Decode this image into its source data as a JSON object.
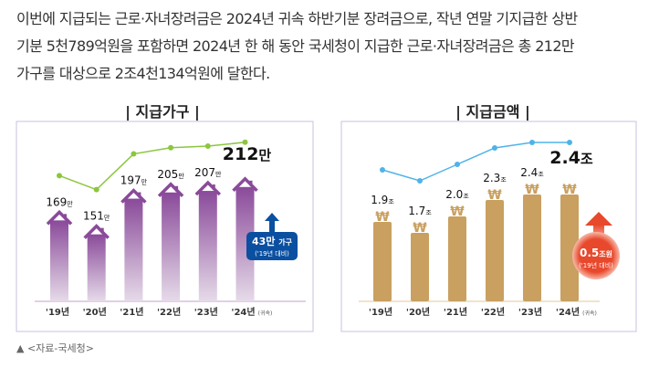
{
  "paragraph": [
    "이번에 지급되는 근로·자녀장려금은 2024년 귀속 하반기분 장려금으로, 작년 연말 기지급한 상반",
    "기분 5천789억원을 포함하면 2024년 한 해 동안 국세청이 지급한 근로·자녀장려금은 총 212만",
    "가구를 대상으로 2조4천134억원에 달한다."
  ],
  "source": "▲ <자료-국세청>",
  "chart_data": [
    {
      "type": "bar",
      "title": "| 지급가구 |",
      "categories": [
        "'19년",
        "'20년",
        "'21년",
        "'22년",
        "'23년",
        "'24년"
      ],
      "category_note": "(귀속)",
      "values": [
        169,
        151,
        197,
        205,
        207,
        212
      ],
      "value_labels": [
        "169",
        "151",
        "197",
        "205",
        "207",
        "212"
      ],
      "unit": "만",
      "bar_color": "#8a4a9a",
      "line_color": "#8cc63f",
      "callout": {
        "value": "43만",
        "unit": "가구",
        "note": "('19년 대비)",
        "color": "#0b4fa0"
      }
    },
    {
      "type": "bar",
      "title": "| 지급금액 |",
      "categories": [
        "'19년",
        "'20년",
        "'21년",
        "'22년",
        "'23년",
        "'24년"
      ],
      "category_note": "(귀속)",
      "values": [
        1.9,
        1.7,
        2.0,
        2.3,
        2.4,
        2.4
      ],
      "value_labels": [
        "1.9",
        "1.7",
        "2.0",
        "2.3",
        "2.4",
        "2.4"
      ],
      "unit": "조",
      "bar_color": "#c9a060",
      "line_color": "#4fb3e8",
      "callout": {
        "value": "0.5",
        "unit": "조원",
        "note": "('19년 대비)",
        "color": "#e8482c"
      }
    }
  ]
}
